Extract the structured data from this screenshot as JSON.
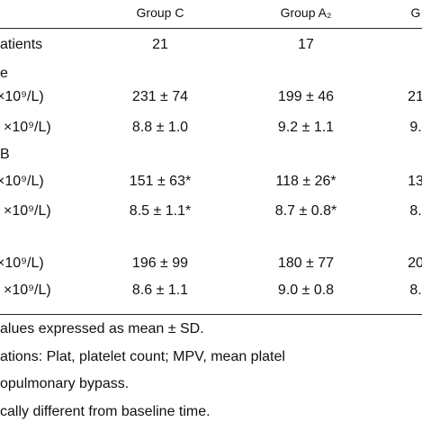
{
  "table": {
    "header": [
      "Group C",
      "Group A₂",
      "G"
    ],
    "rows": [
      [
        "atients",
        "21",
        "17",
        ""
      ],
      [
        "e",
        "",
        "",
        ""
      ],
      [
        "×10⁹/L)",
        "231 ± 74",
        "199 ± 46",
        "21"
      ],
      [
        "×10⁹/L)",
        "8.8 ± 1.0",
        "9.2 ± 1.1",
        "9."
      ],
      [
        "B",
        "",
        "",
        ""
      ],
      [
        "×10⁹/L)",
        "151 ± 63*",
        "118 ± 26*",
        "13"
      ],
      [
        "×10⁹/L)",
        "8.5 ± 1.1*",
        "8.7 ± 0.8*",
        "8."
      ],
      [
        "×10⁹/L)",
        "196 ± 99",
        "180 ± 77",
        "20"
      ],
      [
        "×10⁹/L)",
        "8.6 ± 1.1",
        "9.0 ± 0.8",
        "8."
      ]
    ]
  },
  "footnotes": [
    "alues expressed as mean ± SD.",
    "ations: Plat, platelet count; MPV, mean platel",
    "opulmonary bypass.",
    "cally different from baseline time."
  ]
}
